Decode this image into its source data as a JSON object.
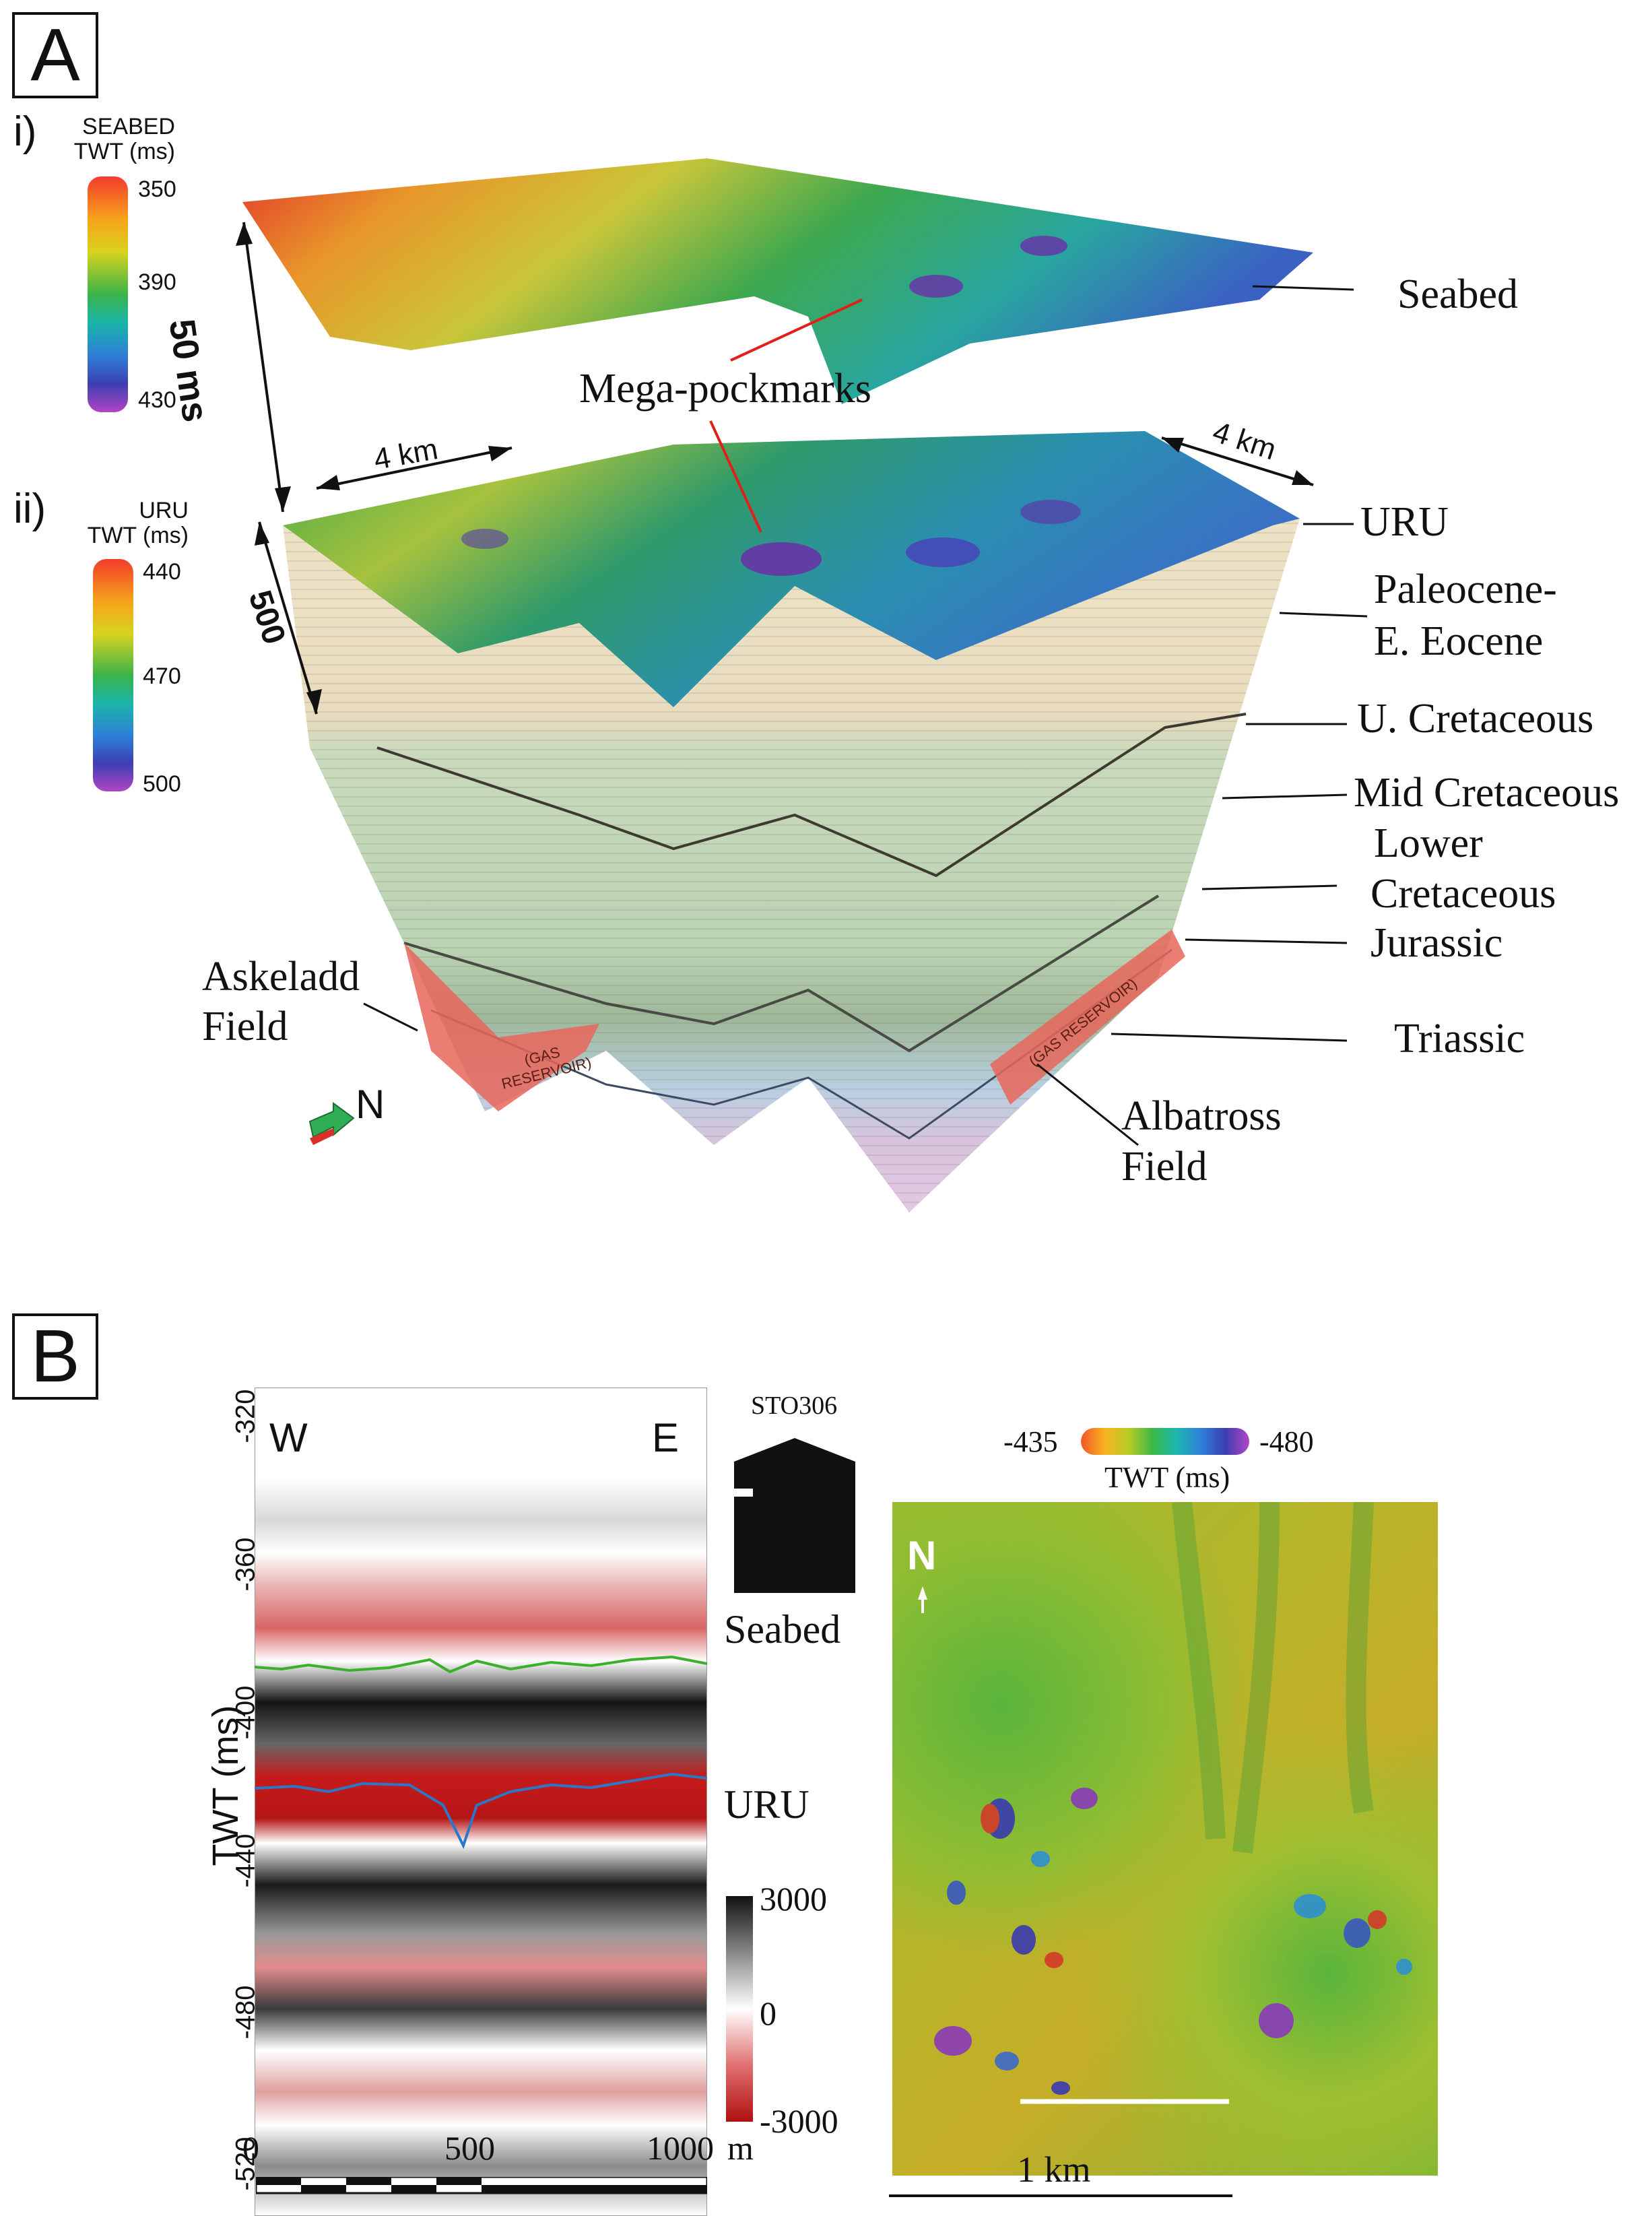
{
  "panel_a": {
    "letter": "A",
    "sub_i": "i)",
    "sub_ii": "ii)",
    "seabed_cbar": {
      "title_line1": "SEABED",
      "title_line2": "TWT (ms)",
      "ticks": [
        "350",
        "390",
        "430"
      ]
    },
    "uru_cbar": {
      "title_line1": "URU",
      "title_line2": "TWT (ms)",
      "ticks": [
        "440",
        "470",
        "500"
      ]
    },
    "scale_50ms": "50 ms",
    "scale_4km_left": "4 km",
    "scale_4km_right": "4 km",
    "scale_500": "500",
    "mega_pockmarks": "Mega-pockmarks",
    "layers": [
      "Seabed",
      "URU",
      "Paleocene-",
      "E. Eocene",
      "U. Cretaceous",
      "Mid Cretaceous",
      "Lower",
      "Cretaceous",
      "Jurassic",
      "Triassic"
    ],
    "askeladd_line1": "Askeladd",
    "askeladd_line2": "Field",
    "albatross_line1": "Albatross",
    "albatross_line2": "Field",
    "gas_reservoir_left_1": "(GAS",
    "gas_reservoir_left_2": "RESERVOIR)",
    "gas_reservoir_right": "(GAS RESERVOIR)",
    "north": "N",
    "colors": {
      "orange": "#e8572f",
      "green": "#2fae55",
      "blue": "#2a7fd4",
      "purple": "#a33dbf",
      "reservoir": "#e8665a"
    }
  },
  "panel_b": {
    "letter": "B",
    "west": "W",
    "east": "E",
    "y_axis_title": "TWT (ms)",
    "y_ticks": [
      "-320",
      "-360",
      "-400",
      "-440",
      "-480",
      "-520"
    ],
    "x_ticks": [
      "0",
      "500",
      "1000"
    ],
    "x_unit": "m",
    "amp_ticks": [
      "3000",
      "0",
      "-3000"
    ],
    "sto_label": "STO306",
    "seabed": "Seabed",
    "uru": "URU",
    "map_cbar": {
      "left": "-435",
      "right": "-480",
      "title": "TWT (ms)"
    },
    "map_north": "N",
    "map_scale": "1 km",
    "colors": {
      "seabed_horizon": "#3cb02c",
      "uru_horizon": "#2a78c8"
    }
  }
}
